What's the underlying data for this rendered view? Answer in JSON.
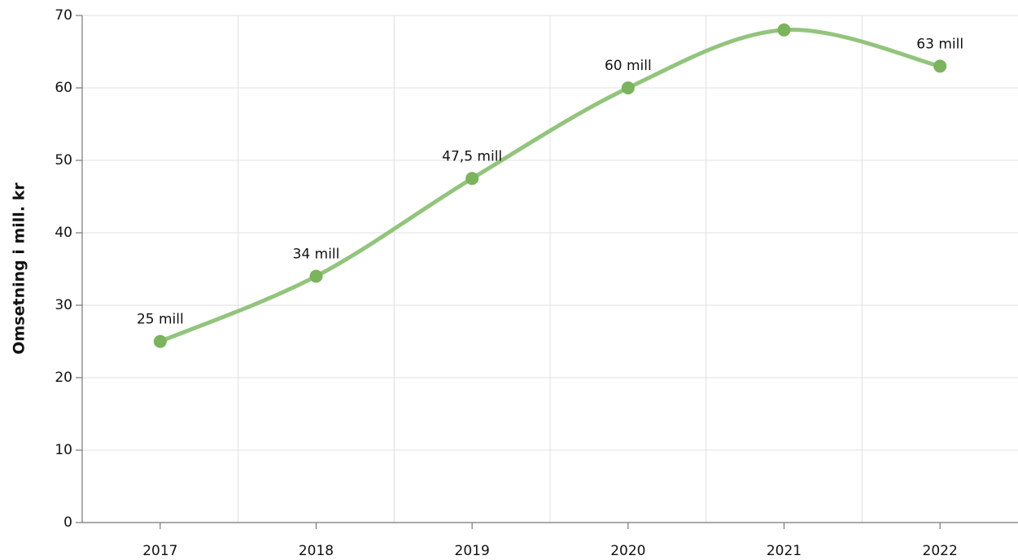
{
  "chart_data": {
    "type": "line",
    "y_label": "Omsetning i mill. kr",
    "categories": [
      "2017",
      "2018",
      "2019",
      "2020",
      "2021",
      "2022"
    ],
    "series": [
      {
        "name": "Omsetning",
        "color": "#93c47d",
        "marker_color": "#7cb35d",
        "values": [
          25,
          34,
          47.5,
          60,
          68,
          63
        ],
        "value_labels": [
          "25 mill",
          "34 mill",
          "47,5 mill",
          "60 mill",
          null,
          "63 mill"
        ]
      }
    ],
    "ylim": [
      0,
      70
    ],
    "yticks": [
      0,
      10,
      20,
      30,
      40,
      50,
      60,
      70
    ],
    "grid": true,
    "smooth": true
  }
}
